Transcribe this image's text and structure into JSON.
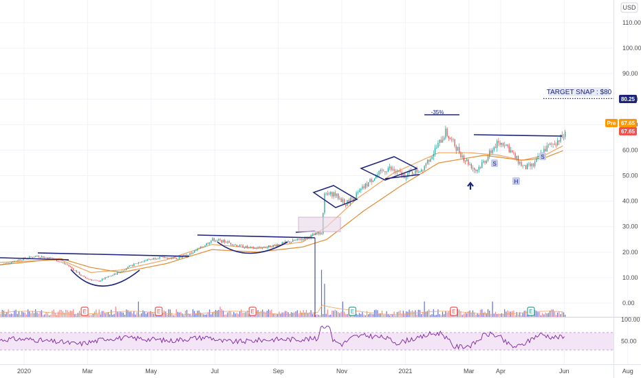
{
  "currency_label": "USD",
  "chart_data": {
    "type": "candlestick",
    "price_axis": {
      "min": -4,
      "max": 115,
      "ticks": [
        110,
        100,
        90,
        80,
        70,
        60,
        50,
        40,
        30,
        20,
        10,
        0
      ],
      "tick_labels": [
        "110.00",
        "100.00",
        "90.00",
        "80.00",
        "70.00",
        "60.00",
        "50.00",
        "40.00",
        "30.00",
        "20.00",
        "10.00",
        "0.00"
      ]
    },
    "time_axis": {
      "labels": [
        "2020",
        "Mar",
        "May",
        "Jul",
        "Sep",
        "Nov",
        "2021",
        "Mar",
        "Apr",
        "Jun",
        "Aug"
      ],
      "label_index": [
        0,
        42,
        84,
        126,
        168,
        210,
        252,
        294,
        315,
        357,
        399
      ]
    },
    "bars_total_slots": 420,
    "series_anchors": [
      [
        0,
        15
      ],
      [
        12,
        17
      ],
      [
        24,
        18.5
      ],
      [
        34,
        17.5
      ],
      [
        44,
        15
      ],
      [
        55,
        10
      ],
      [
        64,
        8.5
      ],
      [
        74,
        11
      ],
      [
        84,
        14
      ],
      [
        93,
        16.5
      ],
      [
        105,
        18
      ],
      [
        115,
        17.5
      ],
      [
        124,
        19
      ],
      [
        133,
        22
      ],
      [
        140,
        25
      ],
      [
        149,
        24
      ],
      [
        157,
        22.5
      ],
      [
        166,
        21.5
      ],
      [
        176,
        22
      ],
      [
        187,
        23.5
      ],
      [
        198,
        25
      ],
      [
        206,
        26.5
      ],
      [
        212,
        27.5
      ],
      [
        214,
        42
      ],
      [
        220,
        43
      ],
      [
        228,
        39
      ],
      [
        236,
        43
      ],
      [
        246,
        49
      ],
      [
        256,
        53
      ],
      [
        266,
        50
      ],
      [
        278,
        52.5
      ],
      [
        287,
        60
      ],
      [
        294,
        67
      ],
      [
        300,
        62
      ],
      [
        306,
        57
      ],
      [
        314,
        52
      ],
      [
        320,
        56
      ],
      [
        327,
        62
      ],
      [
        333,
        63
      ],
      [
        340,
        57
      ],
      [
        346,
        53
      ],
      [
        352,
        54
      ],
      [
        359,
        60
      ],
      [
        366,
        63
      ],
      [
        373,
        66
      ]
    ],
    "ma_fast_anchors": [
      [
        0,
        16
      ],
      [
        40,
        17
      ],
      [
        60,
        12
      ],
      [
        80,
        13
      ],
      [
        110,
        17
      ],
      [
        140,
        23
      ],
      [
        170,
        21.5
      ],
      [
        200,
        24
      ],
      [
        216,
        30
      ],
      [
        236,
        41
      ],
      [
        260,
        51
      ],
      [
        290,
        59
      ],
      [
        310,
        59
      ],
      [
        330,
        58
      ],
      [
        345,
        56
      ],
      [
        360,
        58
      ],
      [
        373,
        62
      ]
    ],
    "ma_slow_anchors": [
      [
        0,
        15
      ],
      [
        40,
        17.5
      ],
      [
        60,
        14
      ],
      [
        80,
        12
      ],
      [
        110,
        15.5
      ],
      [
        140,
        21
      ],
      [
        170,
        20
      ],
      [
        200,
        22
      ],
      [
        216,
        25
      ],
      [
        240,
        36
      ],
      [
        265,
        46
      ],
      [
        290,
        55
      ],
      [
        320,
        58
      ],
      [
        345,
        56
      ],
      [
        360,
        57
      ],
      [
        373,
        60
      ]
    ],
    "volume_spikes": [
      [
        212,
        18.5
      ],
      [
        214,
        13
      ],
      [
        76,
        4
      ],
      [
        145,
        4
      ],
      [
        91,
        6
      ],
      [
        226,
        6
      ],
      [
        280,
        6
      ],
      [
        325,
        6
      ]
    ],
    "earnings_markers": [
      35,
      84,
      146,
      212,
      279,
      330
    ],
    "last_price": "67.65",
    "premarket_label": "Pre",
    "premarket_price": "67.65",
    "target_price_label": "80.25",
    "target_price": 80.25,
    "target_text": "TARGET SNAP : $80",
    "annotations": {
      "peak_change": "-35%",
      "hs_left": "S",
      "hs_head": "H",
      "hs_right": "S"
    },
    "rsi": {
      "ticks": [
        100,
        50
      ],
      "tick_labels": [
        "100.00",
        "50.00"
      ],
      "upper_band": 70,
      "lower_band": 30,
      "color": "#7b1fa2"
    },
    "colors": {
      "up": "#26a69a",
      "down": "#ef5350",
      "ma_fast": "#f5a25d",
      "ma_slow": "#e68a2e",
      "trendline": "#1a237e",
      "volume_up": "#3f51d8",
      "volume_down": "#ef6f6c",
      "earnings": "#ef5350",
      "earnings_recent": "#26a69a",
      "target_box": "#c5cae9",
      "last_price_bg": "#ef5350",
      "pre_bg": "#ff9800",
      "target_bg": "#1a237e"
    }
  }
}
